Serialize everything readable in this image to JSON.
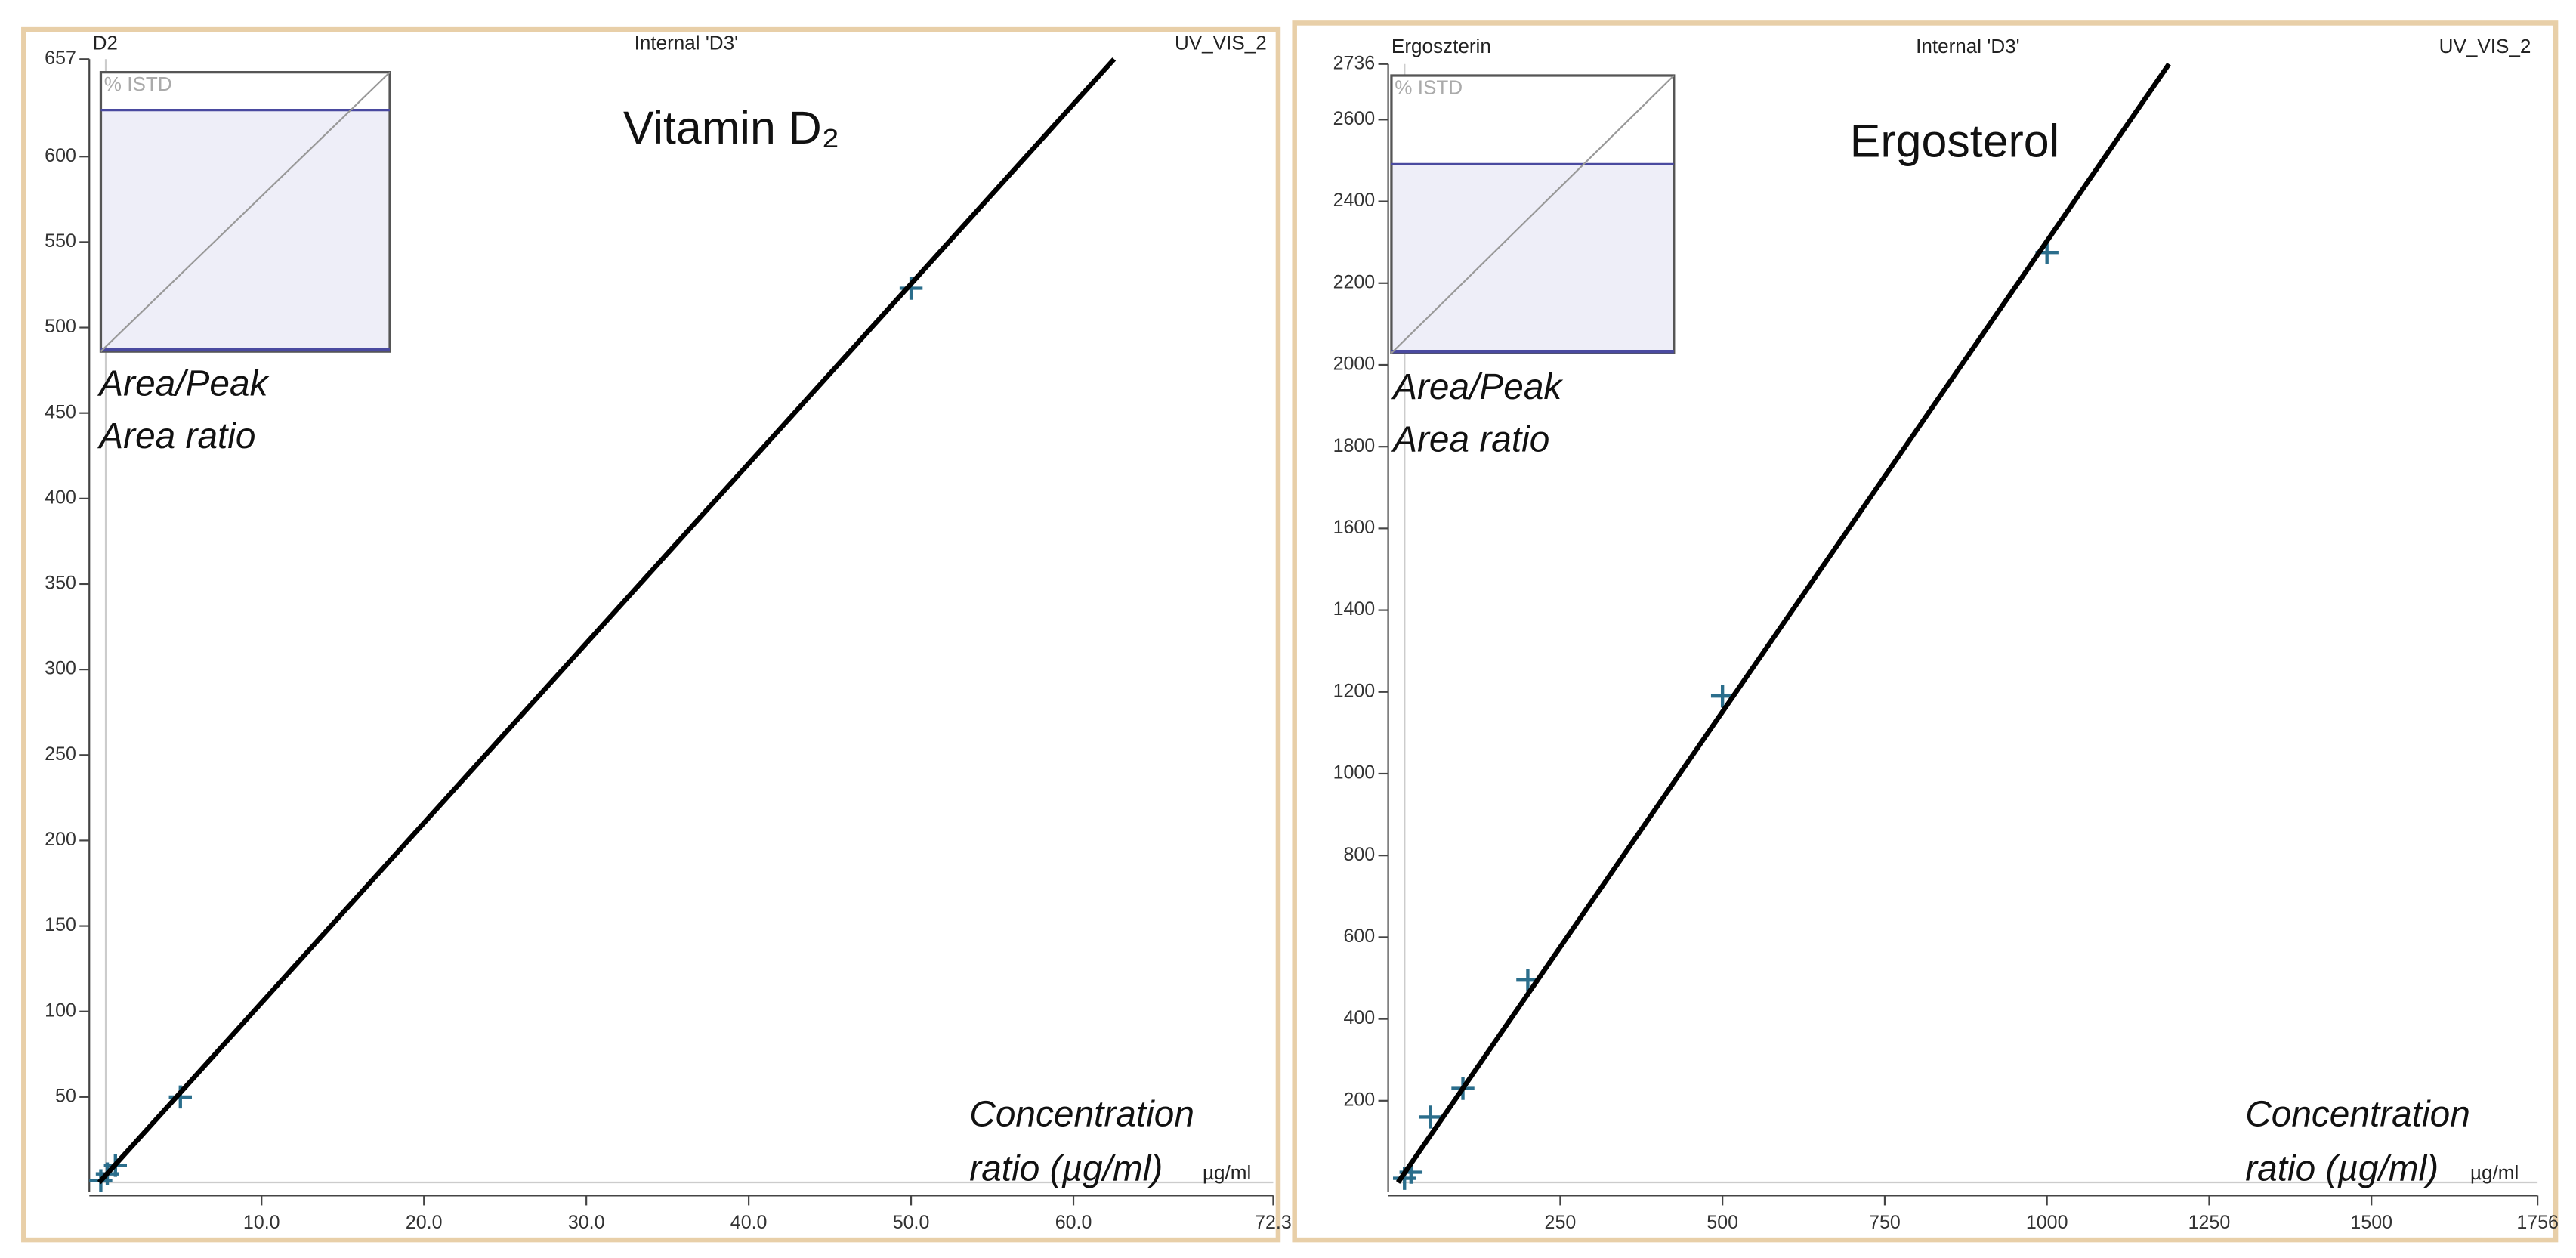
{
  "chart_data": [
    {
      "type": "scatter",
      "header": {
        "left": "D2",
        "center": "Internal 'D3'",
        "right": "UV_VIS_2"
      },
      "title": "Vitamin D₂",
      "inset_label": "% ISTD",
      "y_label": [
        "Area/Peak",
        "Area ratio"
      ],
      "x_label": [
        "Concentration",
        "ratio (µg/ml)"
      ],
      "x_unit": "µg/ml",
      "xlim": [
        0,
        72.3
      ],
      "ylim": [
        0,
        657
      ],
      "xticks": [
        {
          "value": 10,
          "label": "10.0"
        },
        {
          "value": 20,
          "label": "20.0"
        },
        {
          "value": 30,
          "label": "30.0"
        },
        {
          "value": 40,
          "label": "40.0"
        },
        {
          "value": 50,
          "label": "50.0"
        },
        {
          "value": 60,
          "label": "60.0"
        },
        72.3
      ],
      "yticks": [
        50,
        100,
        150,
        200,
        250,
        300,
        350,
        400,
        450,
        500,
        550,
        600,
        657
      ],
      "grid": false,
      "series": [
        {
          "type": "scatter",
          "color": "#2b6e8c",
          "x": [
            0.1,
            0.5,
            1,
            5,
            50
          ],
          "values": [
            1,
            5,
            10,
            50,
            523
          ]
        },
        {
          "type": "line",
          "color": "#000000",
          "x": [
            0,
            62.5
          ],
          "values": [
            0,
            657
          ]
        }
      ]
    },
    {
      "type": "scatter",
      "header": {
        "left": "Ergoszterin",
        "center": "Internal 'D3'",
        "right": "UV_VIS_2"
      },
      "title": "Ergosterol",
      "inset_label": "% ISTD",
      "y_label": [
        "Area/Peak",
        "Area ratio"
      ],
      "x_label": [
        "Concentration",
        "ratio (µg/ml)"
      ],
      "x_unit": "µg/ml",
      "xlim": [
        0,
        1756
      ],
      "ylim": [
        0,
        2736
      ],
      "xticks": [
        250,
        500,
        750,
        1000,
        1250,
        1500,
        1756
      ],
      "yticks": [
        200,
        400,
        600,
        800,
        1000,
        1200,
        1400,
        1600,
        1800,
        2000,
        2200,
        2400,
        2600,
        2736
      ],
      "grid": false,
      "series": [
        {
          "type": "scatter",
          "color": "#2b6e8c",
          "x": [
            10,
            20,
            50,
            100,
            200,
            500,
            1000
          ],
          "values": [
            10,
            25,
            160,
            230,
            495,
            1190,
            2275
          ]
        },
        {
          "type": "line",
          "color": "#000000",
          "x": [
            0,
            1188
          ],
          "values": [
            0,
            2736
          ]
        }
      ]
    }
  ]
}
